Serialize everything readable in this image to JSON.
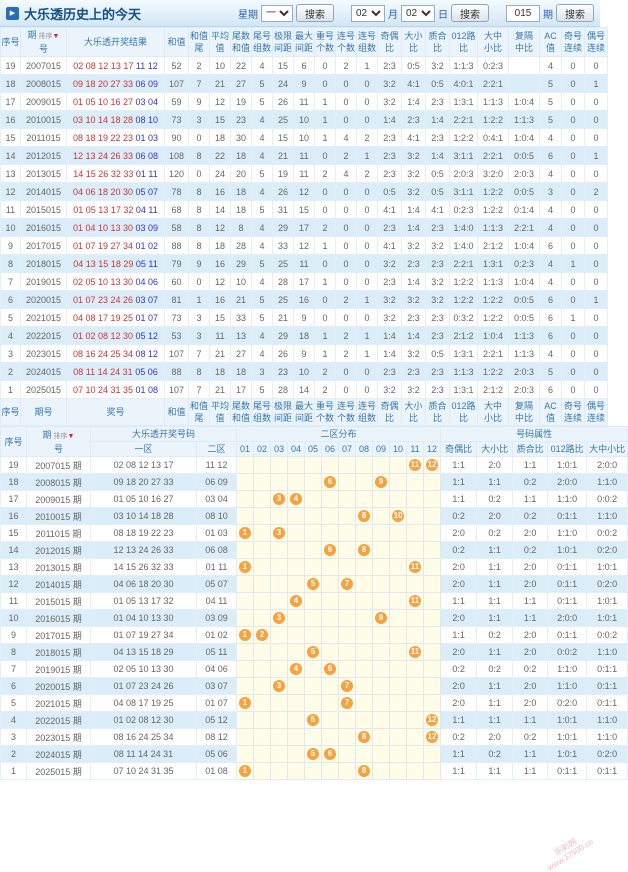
{
  "header": {
    "title": "大乐透历史上的今天",
    "week_label": "星期",
    "week_value": "一",
    "search_label": "搜索",
    "month_value": "02",
    "month_label": "月",
    "day_value": "02",
    "day_label": "日",
    "issue_value": "015",
    "issue_label": "期"
  },
  "sort_label": "排序",
  "table1": {
    "keys": [
      "seq",
      "issue",
      "result",
      "sum",
      "sum-tail",
      "avg",
      "tail-sum",
      "tail-groups",
      "limit-gap",
      "max-gap",
      "repeat-count",
      "consec-count",
      "consec-groups",
      "odd-even-ratio",
      "big-small-ratio",
      "prime-composite-ratio",
      "road012-ratio",
      "big-mid-small-ratio",
      "repeat-interval-mid-ratio",
      "ac-value",
      "odd-consec",
      "even-consec"
    ],
    "headers": [
      {
        "l1": "序号",
        "l2": ""
      },
      {
        "l1": "期",
        "l2": "号",
        "sort": true
      },
      {
        "l1": "大乐透开奖结果",
        "l2": ""
      },
      {
        "l1": "和值",
        "l2": ""
      },
      {
        "l1": "和值",
        "l2": "尾"
      },
      {
        "l1": "平均",
        "l2": "值"
      },
      {
        "l1": "尾数",
        "l2": "和值"
      },
      {
        "l1": "尾号",
        "l2": "组数"
      },
      {
        "l1": "极限",
        "l2": "间距"
      },
      {
        "l1": "最大",
        "l2": "间距"
      },
      {
        "l1": "重号",
        "l2": "个数"
      },
      {
        "l1": "连号",
        "l2": "个数"
      },
      {
        "l1": "连号",
        "l2": "组数"
      },
      {
        "l1": "奇偶",
        "l2": "比"
      },
      {
        "l1": "大小",
        "l2": "比"
      },
      {
        "l1": "质合",
        "l2": "比"
      },
      {
        "l1": "012路",
        "l2": "比"
      },
      {
        "l1": "大中",
        "l2": "小比"
      },
      {
        "l1": "复隔",
        "l2": "中比"
      },
      {
        "l1": "AC值",
        "l2": ""
      },
      {
        "l1": "奇号",
        "l2": "连续"
      },
      {
        "l1": "偶号",
        "l2": "连续"
      }
    ],
    "footer_headers": [
      {
        "l1": "序号",
        "l2": ""
      },
      {
        "l1": "期号",
        "l2": ""
      },
      {
        "l1": "奖号",
        "l2": ""
      },
      {
        "l1": "和值",
        "l2": ""
      },
      {
        "l1": "和值",
        "l2": "尾"
      },
      {
        "l1": "平均",
        "l2": "值"
      },
      {
        "l1": "尾数",
        "l2": "和值"
      },
      {
        "l1": "尾号",
        "l2": "组数"
      },
      {
        "l1": "极限",
        "l2": "间距"
      },
      {
        "l1": "最大",
        "l2": "间距"
      },
      {
        "l1": "重号",
        "l2": "个数"
      },
      {
        "l1": "连号",
        "l2": "个数"
      },
      {
        "l1": "连号",
        "l2": "组数"
      },
      {
        "l1": "奇偶",
        "l2": "比"
      },
      {
        "l1": "大小",
        "l2": "比"
      },
      {
        "l1": "质合",
        "l2": "比"
      },
      {
        "l1": "012路",
        "l2": "比"
      },
      {
        "l1": "大中",
        "l2": "小比"
      },
      {
        "l1": "复隔",
        "l2": "中比"
      },
      {
        "l1": "AC值",
        "l2": ""
      },
      {
        "l1": "奇号",
        "l2": "连续"
      },
      {
        "l1": "偶号",
        "l2": "连续"
      }
    ],
    "rows": [
      [
        "19",
        "2007015",
        "02 08 12 13 17",
        "11 12",
        "52",
        "2",
        "10",
        "22",
        "4",
        "15",
        "6",
        "0",
        "2",
        "1",
        "2:3",
        "0:5",
        "3:2",
        "1:1:3",
        "0:2:3",
        "",
        "4",
        "0",
        "0"
      ],
      [
        "18",
        "2008015",
        "09 18 20 27 33",
        "06 09",
        "107",
        "7",
        "21",
        "27",
        "5",
        "24",
        "9",
        "0",
        "0",
        "0",
        "3:2",
        "4:1",
        "0:5",
        "4:0:1",
        "2:2:1",
        "",
        "5",
        "0",
        "1"
      ],
      [
        "17",
        "2009015",
        "01 05 10 16 27",
        "03 04",
        "59",
        "9",
        "12",
        "19",
        "5",
        "26",
        "11",
        "1",
        "0",
        "0",
        "3:2",
        "1:4",
        "2:3",
        "1:3:1",
        "1:1:3",
        "1:0:4",
        "5",
        "0",
        "0"
      ],
      [
        "16",
        "2010015",
        "03 10 14 18 28",
        "08 10",
        "73",
        "3",
        "15",
        "23",
        "4",
        "25",
        "10",
        "1",
        "0",
        "0",
        "1:4",
        "2:3",
        "1:4",
        "2:2:1",
        "1:2:2",
        "1:1:3",
        "5",
        "0",
        "0"
      ],
      [
        "15",
        "2011015",
        "08 18 19 22 23",
        "01 03",
        "90",
        "0",
        "18",
        "30",
        "4",
        "15",
        "10",
        "1",
        "4",
        "2",
        "2:3",
        "4:1",
        "2:3",
        "1:2:2",
        "0:4:1",
        "1:0:4",
        "4",
        "0",
        "0"
      ],
      [
        "14",
        "2012015",
        "12 13 24 26 33",
        "06 08",
        "108",
        "8",
        "22",
        "18",
        "4",
        "21",
        "11",
        "0",
        "2",
        "1",
        "2:3",
        "3:2",
        "1:4",
        "3:1:1",
        "2:2:1",
        "0:0:5",
        "6",
        "0",
        "1"
      ],
      [
        "13",
        "2013015",
        "14 15 26 32 33",
        "01 11",
        "120",
        "0",
        "24",
        "20",
        "5",
        "19",
        "11",
        "2",
        "4",
        "2",
        "2:3",
        "3:2",
        "0:5",
        "2:0:3",
        "3:2:0",
        "2:0:3",
        "4",
        "0",
        "0"
      ],
      [
        "12",
        "2014015",
        "04 06 18 20 30",
        "05 07",
        "78",
        "8",
        "16",
        "18",
        "4",
        "26",
        "12",
        "0",
        "0",
        "0",
        "0:5",
        "3:2",
        "0:5",
        "3:1:1",
        "1:2:2",
        "0:0:5",
        "3",
        "0",
        "2"
      ],
      [
        "11",
        "2015015",
        "01 05 13 17 32",
        "04 11",
        "68",
        "8",
        "14",
        "18",
        "5",
        "31",
        "15",
        "0",
        "0",
        "0",
        "4:1",
        "1:4",
        "4:1",
        "0:2:3",
        "1:2:2",
        "0:1:4",
        "4",
        "0",
        "0"
      ],
      [
        "10",
        "2016015",
        "01 04 10 13 30",
        "03 09",
        "58",
        "8",
        "12",
        "8",
        "4",
        "29",
        "17",
        "2",
        "0",
        "0",
        "2:3",
        "1:4",
        "2:3",
        "1:4:0",
        "1:1:3",
        "2:2:1",
        "4",
        "0",
        "0"
      ],
      [
        "9",
        "2017015",
        "01 07 19 27 34",
        "01 02",
        "88",
        "8",
        "18",
        "28",
        "4",
        "33",
        "12",
        "1",
        "0",
        "0",
        "4:1",
        "3:2",
        "3:2",
        "1:4:0",
        "2:1:2",
        "1:0:4",
        "6",
        "0",
        "0"
      ],
      [
        "8",
        "2018015",
        "04 13 15 18 29",
        "05 11",
        "79",
        "9",
        "16",
        "29",
        "5",
        "25",
        "11",
        "0",
        "0",
        "0",
        "3:2",
        "2:3",
        "2:3",
        "2:2:1",
        "1:3:1",
        "0:2:3",
        "4",
        "1",
        "0"
      ],
      [
        "7",
        "2019015",
        "02 05 10 13 30",
        "04 06",
        "60",
        "0",
        "12",
        "10",
        "4",
        "28",
        "17",
        "1",
        "0",
        "0",
        "2:3",
        "1:4",
        "3:2",
        "1:2:2",
        "1:1:3",
        "1:0:4",
        "4",
        "0",
        "0"
      ],
      [
        "6",
        "2020015",
        "01 07 23 24 26",
        "03 07",
        "81",
        "1",
        "16",
        "21",
        "5",
        "25",
        "16",
        "0",
        "2",
        "1",
        "3:2",
        "3:2",
        "3:2",
        "1:2:2",
        "1:2:2",
        "0:0:5",
        "6",
        "0",
        "1"
      ],
      [
        "5",
        "2021015",
        "04 08 17 19 25",
        "01 07",
        "73",
        "3",
        "15",
        "33",
        "5",
        "21",
        "9",
        "0",
        "0",
        "0",
        "3:2",
        "2:3",
        "2:3",
        "0:3:2",
        "1:2:2",
        "0:0:5",
        "6",
        "1",
        "0"
      ],
      [
        "4",
        "2022015",
        "01 02 08 12 30",
        "05 12",
        "53",
        "3",
        "11",
        "13",
        "4",
        "29",
        "18",
        "1",
        "2",
        "1",
        "1:4",
        "1:4",
        "2:3",
        "2:1:2",
        "1:0:4",
        "1:1:3",
        "6",
        "0",
        "0"
      ],
      [
        "3",
        "2023015",
        "08 16 24 25 34",
        "08 12",
        "107",
        "7",
        "21",
        "27",
        "4",
        "26",
        "9",
        "1",
        "2",
        "1",
        "1:4",
        "3:2",
        "0:5",
        "1:3:1",
        "2:2:1",
        "1:1:3",
        "4",
        "0",
        "0"
      ],
      [
        "2",
        "2024015",
        "08 11 14 24 31",
        "05 06",
        "88",
        "8",
        "18",
        "18",
        "3",
        "23",
        "10",
        "2",
        "0",
        "0",
        "2:3",
        "2:3",
        "2:3",
        "1:1:3",
        "1:2:2",
        "2:0:3",
        "5",
        "0",
        "0"
      ],
      [
        "1",
        "2025015",
        "07 10 24 31 35",
        "01 08",
        "107",
        "7",
        "21",
        "17",
        "5",
        "28",
        "14",
        "2",
        "0",
        "0",
        "3:2",
        "3:2",
        "2:3",
        "1:3:1",
        "2:1:2",
        "2:0:3",
        "6",
        "0",
        "0"
      ]
    ]
  },
  "table2": {
    "group_headers": {
      "seq": "序号",
      "issue_l1": "期",
      "issue_l2": "号",
      "result": "大乐透开奖号码",
      "dist": "二区分布",
      "attrs": "号码属性",
      "zone1": "一区",
      "zone2": "二区"
    },
    "dist_labels": [
      "01",
      "02",
      "03",
      "04",
      "05",
      "06",
      "07",
      "08",
      "09",
      "10",
      "11",
      "12"
    ],
    "attr_headers": [
      "奇偶比",
      "大小比",
      "质合比",
      "012路比",
      "大中小比"
    ],
    "attr_keys": [
      "odd-even-ratio",
      "big-small-ratio",
      "prime-composite-ratio",
      "road012-ratio",
      "big-mid-small-ratio"
    ],
    "rows": [
      {
        "seq": "19",
        "issue": "2007015 期",
        "zone1": "02 08 12 13 17",
        "zone2": "11 12",
        "balls": [
          11,
          12
        ],
        "attrs": [
          "1:1",
          "2:0",
          "1:1",
          "1:0:1",
          "2:0:0"
        ]
      },
      {
        "seq": "18",
        "issue": "2008015 期",
        "zone1": "09 18 20 27 33",
        "zone2": "06 09",
        "balls": [
          6,
          9
        ],
        "attrs": [
          "1:1",
          "1:1",
          "0:2",
          "2:0:0",
          "1:1:0"
        ]
      },
      {
        "seq": "17",
        "issue": "2009015 期",
        "zone1": "01 05 10 16 27",
        "zone2": "03 04",
        "balls": [
          3,
          4
        ],
        "attrs": [
          "1:1",
          "0:2",
          "1:1",
          "1:1:0",
          "0:0:2"
        ]
      },
      {
        "seq": "16",
        "issue": "2010015 期",
        "zone1": "03 10 14 18 28",
        "zone2": "08 10",
        "balls": [
          8,
          10
        ],
        "attrs": [
          "0:2",
          "2:0",
          "0:2",
          "0:1:1",
          "1:1:0"
        ]
      },
      {
        "seq": "15",
        "issue": "2011015 期",
        "zone1": "08 18 19 22 23",
        "zone2": "01 03",
        "balls": [
          1,
          3
        ],
        "attrs": [
          "2:0",
          "0:2",
          "2:0",
          "1:1:0",
          "0:0:2"
        ]
      },
      {
        "seq": "14",
        "issue": "2012015 期",
        "zone1": "12 13 24 26 33",
        "zone2": "06 08",
        "balls": [
          6,
          8
        ],
        "attrs": [
          "0:2",
          "1:1",
          "0:2",
          "1:0:1",
          "0:2:0"
        ]
      },
      {
        "seq": "13",
        "issue": "2013015 期",
        "zone1": "14 15 26 32 33",
        "zone2": "01 11",
        "balls": [
          1,
          11
        ],
        "attrs": [
          "2:0",
          "1:1",
          "2:0",
          "0:1:1",
          "1:0:1"
        ]
      },
      {
        "seq": "12",
        "issue": "2014015 期",
        "zone1": "04 06 18 20 30",
        "zone2": "05 07",
        "balls": [
          5,
          7
        ],
        "attrs": [
          "2:0",
          "1:1",
          "2:0",
          "0:1:1",
          "0:2:0"
        ]
      },
      {
        "seq": "11",
        "issue": "2015015 期",
        "zone1": "01 05 13 17 32",
        "zone2": "04 11",
        "balls": [
          4,
          11
        ],
        "attrs": [
          "1:1",
          "1:1",
          "1:1",
          "0:1:1",
          "1:0:1"
        ]
      },
      {
        "seq": "10",
        "issue": "2016015 期",
        "zone1": "01 04 10 13 30",
        "zone2": "03 09",
        "balls": [
          3,
          9
        ],
        "attrs": [
          "2:0",
          "1:1",
          "1:1",
          "2:0:0",
          "1:0:1"
        ]
      },
      {
        "seq": "9",
        "issue": "2017015 期",
        "zone1": "01 07 19 27 34",
        "zone2": "01 02",
        "balls": [
          1,
          2
        ],
        "attrs": [
          "1:1",
          "0:2",
          "2:0",
          "0:1:1",
          "0:0:2"
        ]
      },
      {
        "seq": "8",
        "issue": "2018015 期",
        "zone1": "04 13 15 18 29",
        "zone2": "05 11",
        "balls": [
          5,
          11
        ],
        "attrs": [
          "2:0",
          "1:1",
          "2:0",
          "0:0:2",
          "1:1:0"
        ]
      },
      {
        "seq": "7",
        "issue": "2019015 期",
        "zone1": "02 05 10 13 30",
        "zone2": "04 06",
        "balls": [
          4,
          6
        ],
        "attrs": [
          "0:2",
          "0:2",
          "0:2",
          "1:1:0",
          "0:1:1"
        ]
      },
      {
        "seq": "6",
        "issue": "2020015 期",
        "zone1": "01 07 23 24 26",
        "zone2": "03 07",
        "balls": [
          3,
          7
        ],
        "attrs": [
          "2:0",
          "1:1",
          "2:0",
          "1:1:0",
          "0:1:1"
        ]
      },
      {
        "seq": "5",
        "issue": "2021015 期",
        "zone1": "04 08 17 19 25",
        "zone2": "01 07",
        "balls": [
          1,
          7
        ],
        "attrs": [
          "2:0",
          "1:1",
          "2:0",
          "0:2:0",
          "0:1:1"
        ]
      },
      {
        "seq": "4",
        "issue": "2022015 期",
        "zone1": "01 02 08 12 30",
        "zone2": "05 12",
        "balls": [
          5,
          12
        ],
        "attrs": [
          "1:1",
          "1:1",
          "1:1",
          "1:0:1",
          "1:1:0"
        ]
      },
      {
        "seq": "3",
        "issue": "2023015 期",
        "zone1": "08 16 24 25 34",
        "zone2": "08 12",
        "balls": [
          8,
          12
        ],
        "attrs": [
          "0:2",
          "2:0",
          "0:2",
          "1:0:1",
          "1:1:0"
        ]
      },
      {
        "seq": "2",
        "issue": "2024015 期",
        "zone1": "08 11 14 24 31",
        "zone2": "05 06",
        "balls": [
          5,
          6
        ],
        "attrs": [
          "1:1",
          "0:2",
          "1:1",
          "1:0:1",
          "0:2:0"
        ]
      },
      {
        "seq": "1",
        "issue": "2025015 期",
        "zone1": "07 10 24 31 35",
        "zone2": "01 08",
        "balls": [
          1,
          8
        ],
        "attrs": [
          "1:1",
          "1:1",
          "1:1",
          "0:1:1",
          "0:1:1"
        ]
      }
    ]
  },
  "watermark": {
    "line1": "乐彩网",
    "line2": "www.17500.cn"
  },
  "colors": {
    "accent_blue": "#3677b0",
    "title_blue": "#174f87",
    "stripe_blue": "#daedf9",
    "ball_orange": "#f8a13f",
    "front_zone_red": "#cf3434",
    "back_zone_blue": "#3434cf",
    "dist_yellow": "#fffde8"
  }
}
